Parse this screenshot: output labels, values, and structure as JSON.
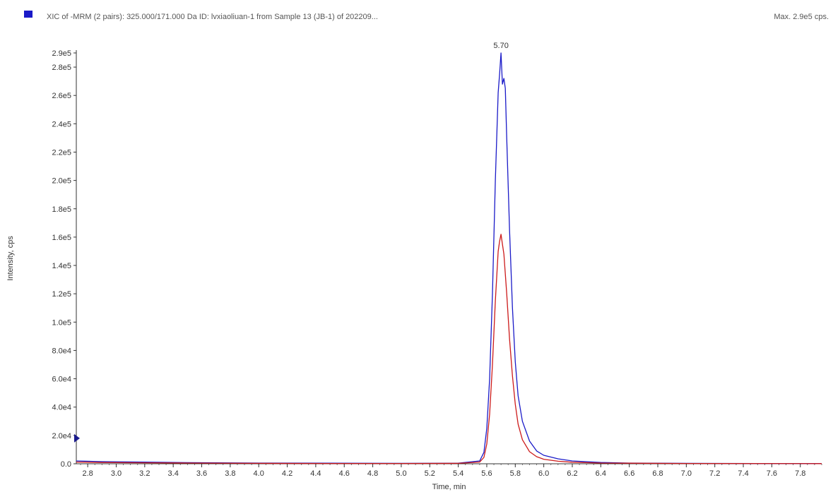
{
  "header": {
    "title": "XIC of -MRM (2 pairs): 325.000/171.000 Da ID: lvxiaoliuan-1 from Sample 13 (JB-1) of 202209...",
    "max_label": "Max. 2.9e5 cps.",
    "legend_color": "#1a1ac8"
  },
  "chart_data": {
    "type": "line",
    "xlabel": "Time, min",
    "ylabel": "Intensity, cps",
    "xlim": [
      2.72,
      7.95
    ],
    "ylim": [
      0,
      290000
    ],
    "x_ticks": [
      2.8,
      3.0,
      3.2,
      3.4,
      3.6,
      3.8,
      4.0,
      4.2,
      4.4,
      4.6,
      4.8,
      5.0,
      5.2,
      5.4,
      5.6,
      5.8,
      6.0,
      6.2,
      6.4,
      6.6,
      6.8,
      7.0,
      7.2,
      7.4,
      7.6,
      7.8
    ],
    "x_tick_labels": [
      "2.8",
      "3.0",
      "3.2",
      "3.4",
      "3.6",
      "3.8",
      "4.0",
      "4.2",
      "4.4",
      "4.6",
      "4.8",
      "5.0",
      "5.2",
      "5.4",
      "5.6",
      "5.8",
      "6.0",
      "6.2",
      "6.4",
      "6.6",
      "6.8",
      "7.0",
      "7.2",
      "7.4",
      "7.6",
      "7.8"
    ],
    "y_ticks": [
      0,
      20000,
      40000,
      60000,
      80000,
      100000,
      120000,
      140000,
      160000,
      180000,
      200000,
      220000,
      240000,
      260000,
      280000,
      290000
    ],
    "y_tick_labels": [
      "0.0",
      "2.0e4",
      "4.0e4",
      "6.0e4",
      "8.0e4",
      "1.0e5",
      "1.2e5",
      "1.4e5",
      "1.6e5",
      "1.8e5",
      "2.0e5",
      "2.2e5",
      "2.4e5",
      "2.6e5",
      "2.8e5",
      "2.9e5"
    ],
    "peak_annotation": {
      "label": "5.70",
      "x": 5.7,
      "y": 290000
    },
    "series": [
      {
        "color": "#1a1ac8",
        "x": [
          2.72,
          2.9,
          3.2,
          3.5,
          4.0,
          4.5,
          5.0,
          5.4,
          5.55,
          5.58,
          5.6,
          5.62,
          5.64,
          5.66,
          5.68,
          5.69,
          5.7,
          5.71,
          5.72,
          5.73,
          5.74,
          5.76,
          5.78,
          5.8,
          5.82,
          5.85,
          5.9,
          5.95,
          6.0,
          6.1,
          6.2,
          6.4,
          6.6,
          7.0,
          7.5,
          7.95
        ],
        "y": [
          2000,
          1500,
          1200,
          800,
          500,
          400,
          300,
          400,
          2000,
          8000,
          25000,
          60000,
          120000,
          200000,
          262000,
          275000,
          290000,
          268000,
          272000,
          265000,
          230000,
          165000,
          110000,
          72000,
          48000,
          30000,
          16000,
          9000,
          6000,
          3500,
          2000,
          900,
          500,
          300,
          200,
          150
        ]
      },
      {
        "color": "#cc1a1a",
        "x": [
          2.72,
          2.9,
          3.2,
          3.5,
          4.0,
          4.5,
          5.0,
          5.4,
          5.55,
          5.58,
          5.6,
          5.62,
          5.64,
          5.66,
          5.68,
          5.69,
          5.7,
          5.71,
          5.72,
          5.74,
          5.76,
          5.78,
          5.8,
          5.82,
          5.85,
          5.9,
          5.95,
          6.0,
          6.1,
          6.2,
          6.4,
          7.0,
          7.95
        ],
        "y": [
          1200,
          900,
          700,
          500,
          300,
          200,
          200,
          300,
          1200,
          4500,
          14000,
          35000,
          70000,
          115000,
          150000,
          157000,
          162000,
          155000,
          148000,
          120000,
          88000,
          62000,
          42000,
          28000,
          17000,
          8500,
          5000,
          3200,
          1800,
          1100,
          500,
          200,
          100
        ]
      }
    ]
  }
}
